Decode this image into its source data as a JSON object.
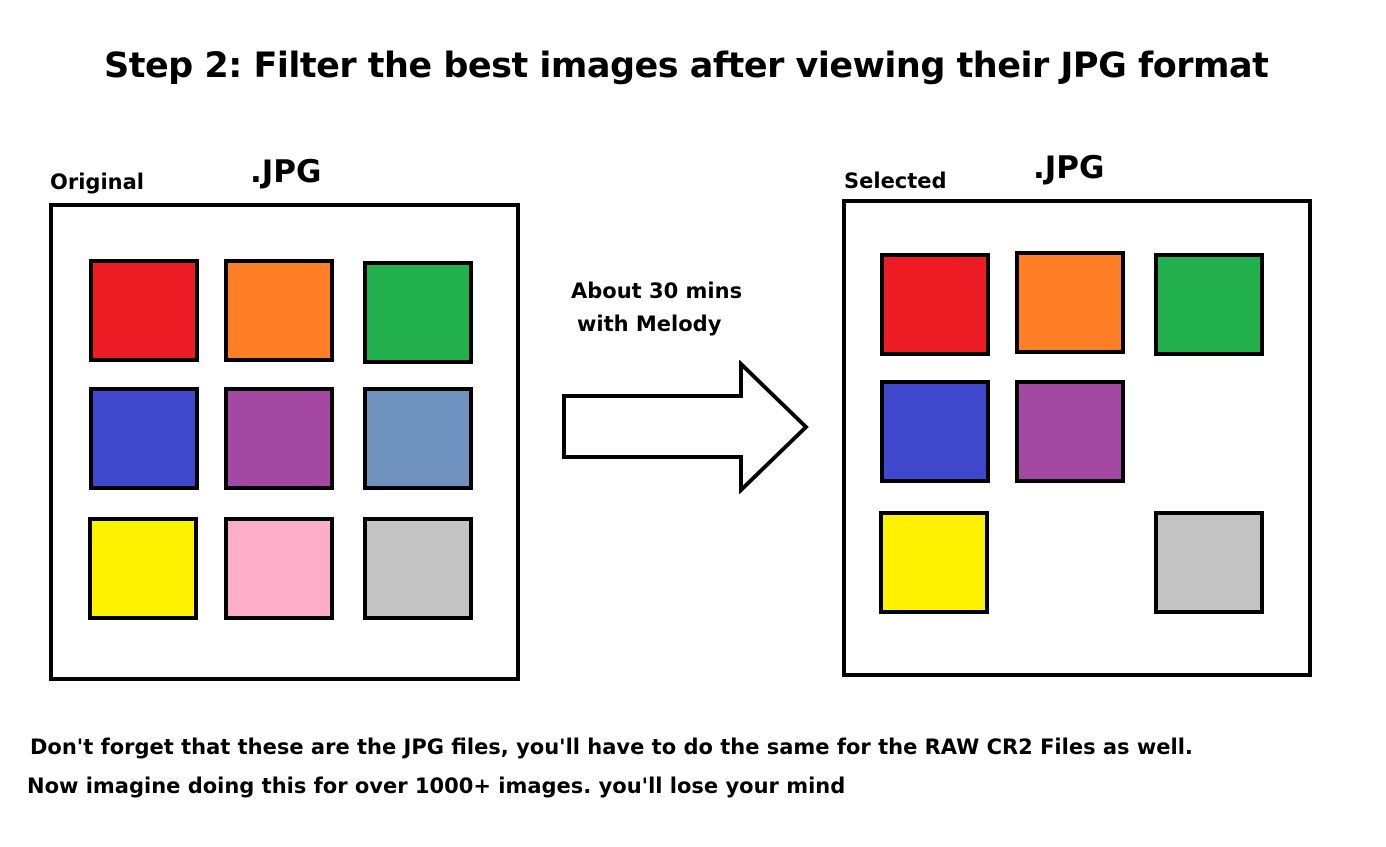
{
  "title": "Step 2: Filter the best images after viewing their JPG format",
  "original": {
    "label": "Original",
    "format": ".JPG",
    "swatches": [
      {
        "color": "#ed1c24",
        "name": "red"
      },
      {
        "color": "#ff7f27",
        "name": "orange"
      },
      {
        "color": "#22b14c",
        "name": "green"
      },
      {
        "color": "#3f48cc",
        "name": "blue"
      },
      {
        "color": "#a349a4",
        "name": "purple"
      },
      {
        "color": "#7092be",
        "name": "steel-blue"
      },
      {
        "color": "#fff200",
        "name": "yellow"
      },
      {
        "color": "#ffaec9",
        "name": "pink"
      },
      {
        "color": "#c3c3c3",
        "name": "gray"
      }
    ]
  },
  "arrow": {
    "line1": "About 30 mins",
    "line2": "with Melody"
  },
  "selected": {
    "label": "Selected",
    "format": ".JPG",
    "swatches": [
      {
        "color": "#ed1c24",
        "name": "red"
      },
      {
        "color": "#ff7f27",
        "name": "orange"
      },
      {
        "color": "#22b14c",
        "name": "green"
      },
      {
        "color": "#3f48cc",
        "name": "blue"
      },
      {
        "color": "#a349a4",
        "name": "purple"
      },
      {
        "color": "#fff200",
        "name": "yellow"
      },
      {
        "color": "#c3c3c3",
        "name": "gray"
      }
    ]
  },
  "footer": {
    "line1": "Don't forget that these are the JPG files, you'll have to do the same for the RAW CR2 Files as well.",
    "line2": "Now imagine doing this for over 1000+ images. you'll lose your mind"
  }
}
